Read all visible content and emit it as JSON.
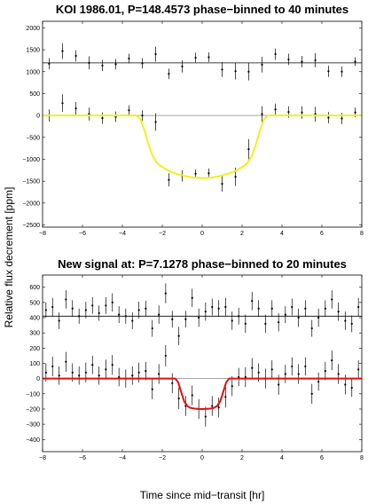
{
  "figure": {
    "shared_ylabel": "Relative flux decrement [ppm]",
    "shared_xlabel": "Time since mid−transit [hr]"
  },
  "chart_data": [
    {
      "type": "scatter",
      "title": "KOI 1986.01, P=148.4573 phase−binned to 40 minutes",
      "xlim": [
        -8,
        8
      ],
      "ylim": [
        -2550,
        2150
      ],
      "x_ticks": [
        "−8",
        "−6",
        "−4",
        "−2",
        "0",
        "2",
        "4",
        "6",
        "8"
      ],
      "x_tick_values": [
        -8,
        -6,
        -4,
        -2,
        0,
        2,
        4,
        6,
        8
      ],
      "y_ticks": [
        "2000",
        "1500",
        "1000",
        "500",
        "0",
        "−500",
        "−1000",
        "−1500",
        "−2000",
        "−2500"
      ],
      "y_tick_values": [
        2000,
        1500,
        1000,
        500,
        0,
        -500,
        -1000,
        -1500,
        -2000,
        -2500
      ],
      "reference_lines": [
        1200,
        0
      ],
      "series": [
        {
          "offset": 1200,
          "x": [
            -7.67,
            -7.0,
            -6.33,
            -5.67,
            -5.0,
            -4.33,
            -3.67,
            -3.0,
            -2.33,
            -1.67,
            -1.0,
            -0.33,
            0.33,
            1.0,
            1.67,
            2.33,
            3.0,
            3.67,
            4.33,
            5.0,
            5.67,
            6.33,
            7.0,
            7.67
          ],
          "y": [
            1180,
            1470,
            1360,
            1200,
            1140,
            1170,
            1300,
            1190,
            1400,
            950,
            1120,
            1320,
            1330,
            1050,
            1010,
            1000,
            1160,
            1400,
            1280,
            1230,
            1260,
            1010,
            1000,
            1230
          ],
          "err": [
            130,
            180,
            130,
            150,
            130,
            120,
            110,
            120,
            170,
            120,
            140,
            110,
            110,
            170,
            190,
            200,
            180,
            130,
            130,
            130,
            160,
            130,
            120,
            100
          ]
        },
        {
          "x": [
            -7.67,
            -7.0,
            -6.33,
            -5.67,
            -5.0,
            -4.33,
            -3.67,
            -3.0,
            -2.33,
            -1.67,
            -1.0,
            -0.33,
            0.33,
            1.0,
            1.67,
            2.33,
            3.0,
            3.67,
            4.33,
            5.0,
            5.67,
            6.33,
            7.0,
            7.67
          ],
          "y": [
            0,
            280,
            160,
            30,
            -60,
            -30,
            120,
            -2,
            -150,
            -1470,
            -1380,
            -1330,
            -1320,
            -1560,
            -1400,
            -770,
            30,
            140,
            80,
            70,
            30,
            -50,
            -70,
            70
          ],
          "err": [
            140,
            200,
            150,
            150,
            130,
            120,
            110,
            120,
            200,
            150,
            130,
            100,
            110,
            180,
            210,
            230,
            180,
            130,
            130,
            140,
            170,
            130,
            130,
            110
          ]
        }
      ],
      "model": {
        "color": "#f0f020",
        "x": [
          -8,
          -3.3,
          -3.1,
          -2.9,
          -2.7,
          -2.5,
          -2.3,
          -2.1,
          -1.7,
          -1.3,
          -0.9,
          -0.5,
          0,
          0.5,
          0.9,
          1.3,
          1.7,
          2.1,
          2.3,
          2.5,
          2.7,
          2.9,
          3.1,
          3.3,
          8
        ],
        "y": [
          0,
          0,
          -80,
          -330,
          -650,
          -910,
          -1060,
          -1150,
          -1260,
          -1330,
          -1380,
          -1415,
          -1430,
          -1415,
          -1380,
          -1330,
          -1260,
          -1150,
          -1060,
          -910,
          -650,
          -330,
          -80,
          0,
          0
        ]
      }
    },
    {
      "type": "scatter",
      "title": "New signal at: P=7.1278 phase−binned to 20 minutes",
      "xlim": [
        -8,
        8
      ],
      "ylim": [
        -480,
        680
      ],
      "x_ticks": [
        "−8",
        "−6",
        "−4",
        "−2",
        "0",
        "2",
        "4",
        "6",
        "8"
      ],
      "x_tick_values": [
        -8,
        -6,
        -4,
        -2,
        0,
        2,
        4,
        6,
        8
      ],
      "y_ticks": [
        "600",
        "500",
        "400",
        "300",
        "200",
        "100",
        "0",
        "−100",
        "−200",
        "−300",
        "−400"
      ],
      "y_tick_values": [
        600,
        500,
        400,
        300,
        200,
        100,
        0,
        -100,
        -200,
        -300,
        -400
      ],
      "xlabel": "Time since mid−transit [hr]",
      "reference_lines": [
        410,
        0
      ],
      "series": [
        {
          "offset": 410,
          "x": [
            -7.83,
            -7.5,
            -7.17,
            -6.83,
            -6.5,
            -6.17,
            -5.83,
            -5.5,
            -5.17,
            -4.83,
            -4.5,
            -4.17,
            -3.83,
            -3.5,
            -3.17,
            -2.83,
            -2.5,
            -2.17,
            -1.83,
            -1.5,
            -1.17,
            -0.83,
            -0.5,
            -0.17,
            0.17,
            0.5,
            0.83,
            1.17,
            1.5,
            1.83,
            2.17,
            2.5,
            2.83,
            3.17,
            3.5,
            3.83,
            4.17,
            4.5,
            4.83,
            5.17,
            5.5,
            5.83,
            6.17,
            6.5,
            6.83,
            7.17,
            7.5,
            7.83
          ],
          "y": [
            450,
            470,
            380,
            520,
            460,
            410,
            450,
            480,
            430,
            480,
            500,
            420,
            410,
            380,
            450,
            460,
            330,
            420,
            560,
            390,
            280,
            390,
            530,
            400,
            440,
            470,
            460,
            470,
            380,
            410,
            360,
            510,
            460,
            360,
            460,
            370,
            420,
            470,
            400,
            460,
            330,
            400,
            460,
            520,
            440,
            380,
            360,
            470
          ],
          "err": [
            50,
            60,
            55,
            60,
            55,
            50,
            55,
            55,
            50,
            55,
            60,
            55,
            50,
            55,
            55,
            50,
            55,
            60,
            65,
            55,
            60,
            55,
            60,
            60,
            60,
            55,
            55,
            60,
            60,
            55,
            60,
            60,
            55,
            60,
            55,
            60,
            55,
            55,
            60,
            55,
            55,
            60,
            55,
            60,
            60,
            60,
            55,
            60
          ]
        },
        {
          "x": [
            -7.83,
            -7.5,
            -7.17,
            -6.83,
            -6.5,
            -6.17,
            -5.83,
            -5.5,
            -5.17,
            -4.83,
            -4.5,
            -4.17,
            -3.83,
            -3.5,
            -3.17,
            -2.83,
            -2.5,
            -2.17,
            -1.83,
            -1.5,
            -1.17,
            -0.83,
            -0.5,
            -0.17,
            0.17,
            0.5,
            0.83,
            1.17,
            1.5,
            1.83,
            2.17,
            2.5,
            2.83,
            3.17,
            3.5,
            3.83,
            4.17,
            4.5,
            4.83,
            5.17,
            5.5,
            5.83,
            6.17,
            6.5,
            6.83,
            7.17,
            7.5,
            7.83
          ],
          "y": [
            40,
            80,
            20,
            110,
            40,
            20,
            40,
            90,
            20,
            60,
            90,
            10,
            0,
            20,
            40,
            50,
            -70,
            30,
            150,
            -30,
            -130,
            -180,
            -110,
            -200,
            -250,
            -180,
            -190,
            -120,
            -50,
            10,
            10,
            70,
            40,
            0,
            60,
            -40,
            30,
            80,
            30,
            80,
            -100,
            -20,
            50,
            120,
            30,
            -40,
            -60,
            60
          ],
          "err": [
            60,
            65,
            60,
            65,
            60,
            60,
            65,
            60,
            60,
            65,
            65,
            60,
            60,
            60,
            65,
            60,
            65,
            65,
            70,
            65,
            70,
            65,
            65,
            65,
            65,
            65,
            65,
            70,
            65,
            60,
            65,
            65,
            60,
            65,
            60,
            65,
            60,
            60,
            65,
            60,
            65,
            60,
            60,
            65,
            65,
            65,
            60,
            60
          ]
        }
      ],
      "model": {
        "color": "#e01010",
        "x": [
          -8,
          -1.35,
          -1.2,
          -1.05,
          -0.9,
          -0.75,
          -0.6,
          -0.4,
          -0.2,
          0,
          0.2,
          0.4,
          0.6,
          0.75,
          0.9,
          1.05,
          1.2,
          1.35,
          8
        ],
        "y": [
          0,
          0,
          -25,
          -90,
          -150,
          -180,
          -192,
          -197,
          -199,
          -200,
          -199,
          -197,
          -192,
          -180,
          -150,
          -90,
          -25,
          0,
          0
        ]
      }
    }
  ]
}
